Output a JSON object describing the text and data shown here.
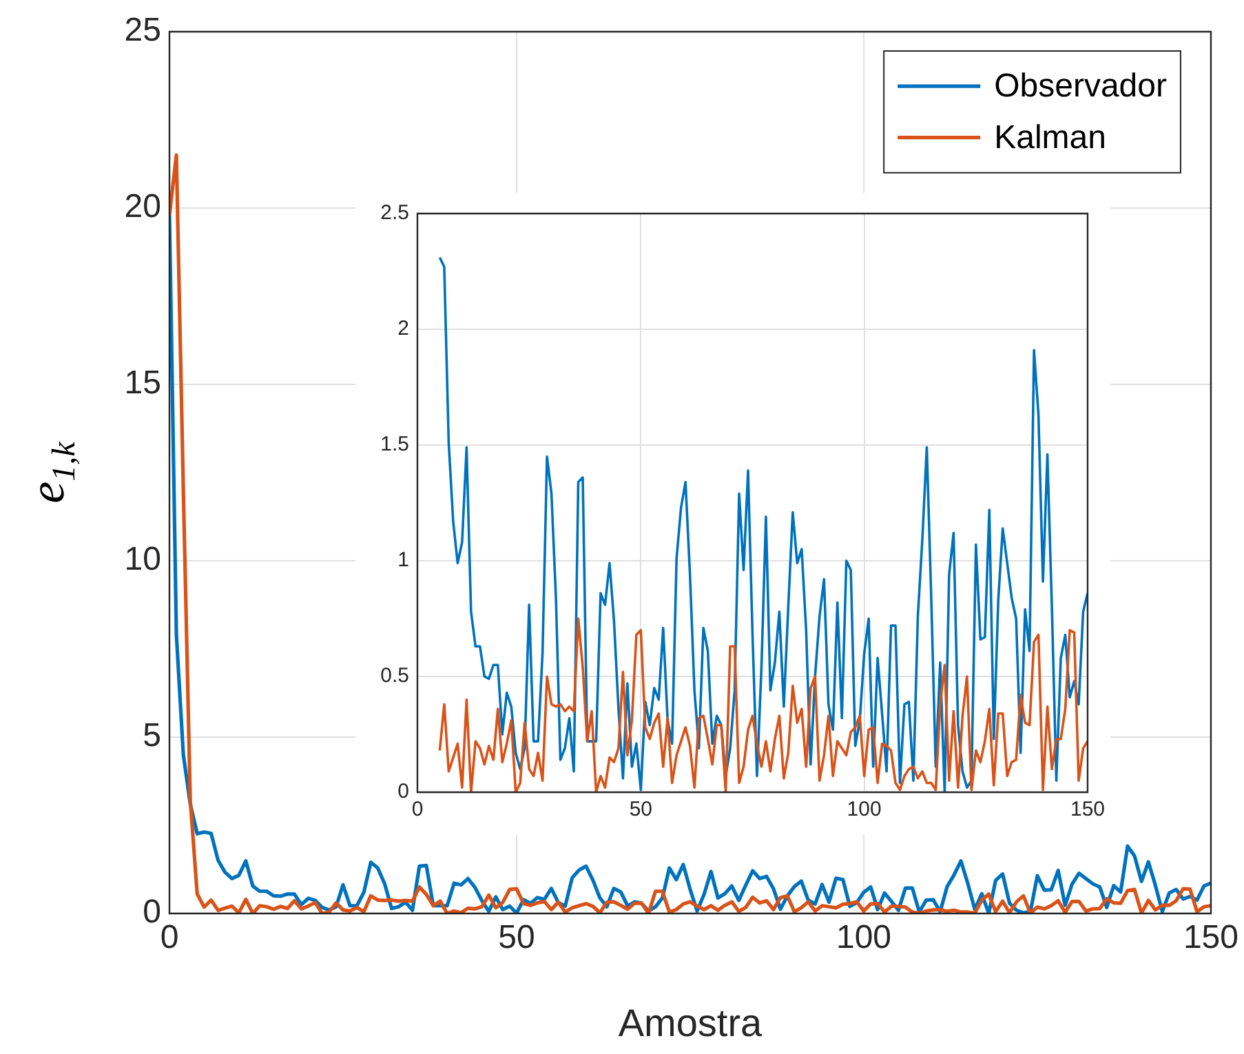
{
  "chart_data": [
    {
      "type": "line",
      "xlabel": "Amostra",
      "ylabel": "e$_{1,k}$",
      "xlim": [
        0,
        150
      ],
      "xticks": [
        0,
        50,
        100,
        150
      ],
      "ylim": [
        0,
        25
      ],
      "yticks": [
        0,
        5,
        10,
        15,
        20,
        25
      ],
      "grid": true,
      "legend": "top right",
      "x": [
        0,
        1,
        2,
        3,
        4,
        5,
        6,
        7,
        8,
        9,
        10,
        11,
        12,
        13,
        14,
        15,
        16,
        17,
        18,
        19,
        20,
        21,
        22,
        23,
        24,
        25,
        26,
        27,
        28,
        29,
        30,
        31,
        32,
        33,
        34,
        35,
        36,
        37,
        38,
        39,
        40,
        41,
        42,
        43,
        44,
        45,
        46,
        47,
        48,
        49,
        50,
        51,
        52,
        53,
        54,
        55,
        56,
        57,
        58,
        59,
        60,
        61,
        62,
        63,
        64,
        65,
        66,
        67,
        68,
        69,
        70,
        71,
        72,
        73,
        74,
        75,
        76,
        77,
        78,
        79,
        80,
        81,
        82,
        83,
        84,
        85,
        86,
        87,
        88,
        89,
        90,
        91,
        92,
        93,
        94,
        95,
        96,
        97,
        98,
        99,
        100,
        101,
        102,
        103,
        104,
        105,
        106,
        107,
        108,
        109,
        110,
        111,
        112,
        113,
        114,
        115,
        116,
        117,
        118,
        119,
        120,
        121,
        122,
        123,
        124,
        125,
        126,
        127,
        128,
        129,
        130,
        131,
        132,
        133,
        134,
        135,
        136,
        137,
        138,
        139,
        140,
        141,
        142,
        143,
        144,
        145,
        146,
        147,
        148,
        149,
        150
      ],
      "series": [
        {
          "name": "Observador",
          "color": "#0072bd",
          "values": [
            19.8,
            7.9,
            4.5,
            3.1,
            2.26,
            2.31,
            2.27,
            1.51,
            1.17,
            0.99,
            1.08,
            1.49,
            0.78,
            0.63,
            0.63,
            0.5,
            0.49,
            0.55,
            0.55,
            0.25,
            0.43,
            0.37,
            0.17,
            0.1,
            0.19,
            0.81,
            0.22,
            0.22,
            0.6,
            1.45,
            1.29,
            0.84,
            0.14,
            0.19,
            0.32,
            0.09,
            1.34,
            1.36,
            0.22,
            0.22,
            0.22,
            0.86,
            0.81,
            0.99,
            0.74,
            0.36,
            0.06,
            0.47,
            0.11,
            0.21,
            0.01,
            0.39,
            0.29,
            0.45,
            0.4,
            0.71,
            0.31,
            0.21,
            1.01,
            1.23,
            1.34,
            0.94,
            0.44,
            0.19,
            0.71,
            0.61,
            0.21,
            0.33,
            0.29,
            0.07,
            0.19,
            0.44,
            1.29,
            0.96,
            1.39,
            0.68,
            0.07,
            0.54,
            1.19,
            0.44,
            0.56,
            0.78,
            0.37,
            0.8,
            1.21,
            0.99,
            1.05,
            0.7,
            0.12,
            0.5,
            0.76,
            0.92,
            0.38,
            0.27,
            0.82,
            0.32,
            1,
            0.96,
            0.2,
            0.31,
            0.6,
            0.75,
            0.11,
            0.58,
            0.34,
            0.09,
            0.72,
            0.72,
            0.04,
            0.38,
            0.39,
            0.05,
            0.76,
            1.09,
            1.49,
            0.84,
            0.11,
            0.56,
            0,
            0.94,
            1.12,
            0.29,
            0.09,
            0.02,
            0.05,
            1.07,
            0.66,
            0.67,
            1.22,
            0.23,
            0.83,
            1.14,
            0.99,
            0.84,
            0.75,
            0.17,
            0.79,
            0.61,
            1.91,
            1.63,
            0.91,
            1.46,
            0.8,
            0.05,
            0.58,
            0.68,
            0.41,
            0.48,
            0.38,
            0.78,
            0.86
          ]
        },
        {
          "name": "Kalman",
          "color": "#d95319",
          "values": [
            19.8,
            21.5,
            12,
            3.2,
            0.55,
            0.18,
            0.38,
            0.09,
            0.15,
            0.21,
            0.02,
            0.4,
            0,
            0.22,
            0.19,
            0.12,
            0.2,
            0.14,
            0.36,
            0.13,
            0.21,
            0.31,
            0,
            0.04,
            0.3,
            0.1,
            0.07,
            0.17,
            0.05,
            0.5,
            0.38,
            0.37,
            0.38,
            0.35,
            0.37,
            0.35,
            0.75,
            0.54,
            0.22,
            0.35,
            0,
            0.07,
            0.02,
            0.15,
            0.13,
            0.19,
            0.52,
            0.16,
            0.31,
            0.68,
            0.7,
            0.28,
            0.23,
            0.3,
            0.34,
            0.11,
            0.32,
            0.04,
            0.16,
            0.22,
            0.28,
            0.2,
            0.02,
            0.32,
            0.33,
            0.23,
            0.12,
            0.29,
            0.29,
            0,
            0.63,
            0.63,
            0.04,
            0.11,
            0.27,
            0.33,
            0.21,
            0.11,
            0.22,
            0.09,
            0.23,
            0.33,
            0.06,
            0.17,
            0.46,
            0.3,
            0.36,
            0.11,
            0.45,
            0.5,
            0.05,
            0.16,
            0.33,
            0.07,
            0.22,
            0.19,
            0.16,
            0.26,
            0.28,
            0.33,
            0.07,
            0.27,
            0.28,
            0.04,
            0.21,
            0.2,
            0.18,
            0.04,
            0.01,
            0.07,
            0.1,
            0.11,
            0.06,
            0.09,
            0.04,
            0.04,
            0.01,
            0.38,
            0.55,
            0.05,
            0.35,
            0.02,
            0.33,
            0.5,
            0.01,
            0.18,
            0.13,
            0.22,
            0.36,
            0.03,
            0.34,
            0.34,
            0.07,
            0.13,
            0.14,
            0.42,
            0.3,
            0.29,
            0.65,
            0.68,
            0.01,
            0.37,
            0.1,
            0.23,
            0.23,
            0.36,
            0.7,
            0.69,
            0.05,
            0.19,
            0.22
          ]
        }
      ]
    },
    {
      "type": "line",
      "xlim": [
        0,
        150
      ],
      "xticks": [
        0,
        50,
        100,
        150
      ],
      "ylim": [
        0,
        2.5
      ],
      "yticks": [
        0,
        0.5,
        1,
        1.5,
        2,
        2.5
      ],
      "grid": true,
      "x": [
        5,
        6,
        7,
        8,
        9,
        10,
        11,
        12,
        13,
        14,
        15,
        16,
        17,
        18,
        19,
        20,
        21,
        22,
        23,
        24,
        25,
        26,
        27,
        28,
        29,
        30,
        31,
        32,
        33,
        34,
        35,
        36,
        37,
        38,
        39,
        40,
        41,
        42,
        43,
        44,
        45,
        46,
        47,
        48,
        49,
        50,
        51,
        52,
        53,
        54,
        55,
        56,
        57,
        58,
        59,
        60,
        61,
        62,
        63,
        64,
        65,
        66,
        67,
        68,
        69,
        70,
        71,
        72,
        73,
        74,
        75,
        76,
        77,
        78,
        79,
        80,
        81,
        82,
        83,
        84,
        85,
        86,
        87,
        88,
        89,
        90,
        91,
        92,
        93,
        94,
        95,
        96,
        97,
        98,
        99,
        100,
        101,
        102,
        103,
        104,
        105,
        106,
        107,
        108,
        109,
        110,
        111,
        112,
        113,
        114,
        115,
        116,
        117,
        118,
        119,
        120,
        121,
        122,
        123,
        124,
        125,
        126,
        127,
        128,
        129,
        130,
        131,
        132,
        133,
        134,
        135,
        136,
        137,
        138,
        139,
        140,
        141,
        142,
        143,
        144,
        145,
        146,
        147,
        148,
        149,
        150
      ],
      "series": [
        {
          "color": "#0072bd",
          "values": [
            2.31,
            2.27,
            1.51,
            1.17,
            0.99,
            1.08,
            1.49,
            0.78,
            0.63,
            0.63,
            0.5,
            0.49,
            0.55,
            0.55,
            0.25,
            0.43,
            0.37,
            0.17,
            0.1,
            0.19,
            0.81,
            0.22,
            0.22,
            0.6,
            1.45,
            1.29,
            0.84,
            0.14,
            0.19,
            0.32,
            0.09,
            1.34,
            1.36,
            0.22,
            0.22,
            0.22,
            0.86,
            0.81,
            0.99,
            0.74,
            0.36,
            0.06,
            0.47,
            0.11,
            0.21,
            0.01,
            0.39,
            0.29,
            0.45,
            0.4,
            0.71,
            0.31,
            0.21,
            1.01,
            1.23,
            1.34,
            0.94,
            0.44,
            0.19,
            0.71,
            0.61,
            0.21,
            0.33,
            0.29,
            0.07,
            0.19,
            0.44,
            1.29,
            0.96,
            1.39,
            0.68,
            0.07,
            0.54,
            1.19,
            0.44,
            0.56,
            0.78,
            0.37,
            0.8,
            1.21,
            0.99,
            1.05,
            0.7,
            0.12,
            0.5,
            0.76,
            0.92,
            0.38,
            0.27,
            0.82,
            0.32,
            1,
            0.96,
            0.2,
            0.31,
            0.6,
            0.75,
            0.11,
            0.58,
            0.34,
            0.09,
            0.72,
            0.72,
            0.04,
            0.38,
            0.39,
            0.05,
            0.76,
            1.09,
            1.49,
            0.84,
            0.11,
            0.56,
            0,
            0.94,
            1.12,
            0.29,
            0.09,
            0.02,
            0.05,
            1.07,
            0.66,
            0.67,
            1.22,
            0.23,
            0.83,
            1.14,
            0.99,
            0.84,
            0.75,
            0.17,
            0.79,
            0.61,
            1.91,
            1.63,
            0.91,
            1.46,
            0.8,
            0.05,
            0.58,
            0.68,
            0.41,
            0.48,
            0.38,
            0.78,
            0.86
          ]
        },
        {
          "color": "#d95319",
          "values": [
            0.18,
            0.38,
            0.09,
            0.15,
            0.21,
            0.02,
            0.4,
            0,
            0.22,
            0.19,
            0.12,
            0.2,
            0.14,
            0.36,
            0.13,
            0.21,
            0.31,
            0,
            0.04,
            0.3,
            0.1,
            0.07,
            0.17,
            0.05,
            0.5,
            0.38,
            0.37,
            0.38,
            0.35,
            0.37,
            0.35,
            0.75,
            0.54,
            0.22,
            0.35,
            0,
            0.07,
            0.02,
            0.15,
            0.13,
            0.19,
            0.52,
            0.16,
            0.31,
            0.68,
            0.7,
            0.28,
            0.23,
            0.3,
            0.34,
            0.11,
            0.32,
            0.04,
            0.16,
            0.22,
            0.28,
            0.2,
            0.02,
            0.32,
            0.33,
            0.23,
            0.12,
            0.29,
            0.29,
            0,
            0.63,
            0.63,
            0.04,
            0.11,
            0.27,
            0.33,
            0.21,
            0.11,
            0.22,
            0.09,
            0.23,
            0.33,
            0.06,
            0.17,
            0.46,
            0.3,
            0.36,
            0.11,
            0.45,
            0.5,
            0.05,
            0.16,
            0.33,
            0.07,
            0.22,
            0.19,
            0.16,
            0.26,
            0.28,
            0.33,
            0.07,
            0.27,
            0.28,
            0.04,
            0.21,
            0.2,
            0.18,
            0.04,
            0.01,
            0.07,
            0.1,
            0.11,
            0.06,
            0.09,
            0.04,
            0.04,
            0.01,
            0.38,
            0.55,
            0.05,
            0.35,
            0.02,
            0.33,
            0.5,
            0.01,
            0.18,
            0.13,
            0.22,
            0.36,
            0.03,
            0.34,
            0.34,
            0.07,
            0.13,
            0.14,
            0.42,
            0.3,
            0.29,
            0.65,
            0.68,
            0.01,
            0.37,
            0.1,
            0.23,
            0.23,
            0.36,
            0.7,
            0.69,
            0.05,
            0.19,
            0.22
          ]
        }
      ]
    }
  ]
}
